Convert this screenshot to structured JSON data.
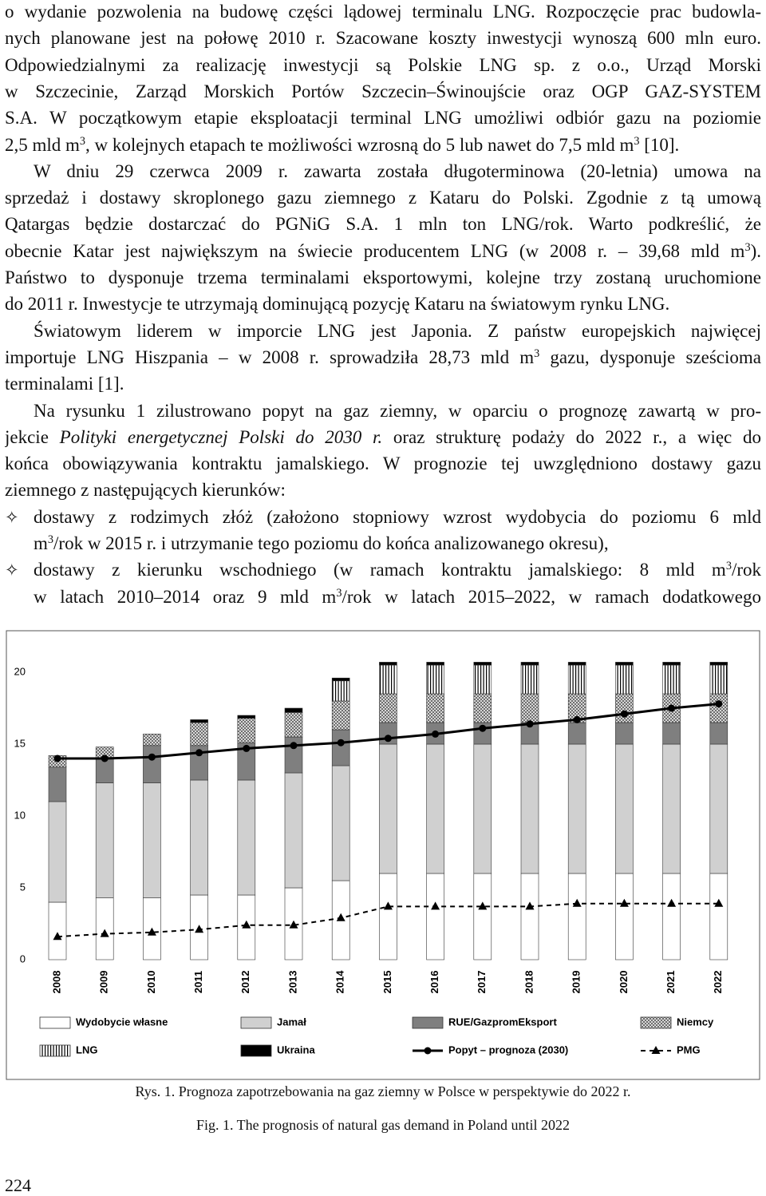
{
  "body": [
    {
      "kind": "paragraph",
      "indent": false,
      "lines": [
        [
          "o wydanie pozwolenia na budowę części lądowej terminalu LNG. Rozpoczęcie prac budowla-"
        ],
        [
          "nych planowane jest na połowę 2010 r. Szacowane koszty inwestycji wynoszą 600 mln euro."
        ],
        [
          "Odpowiedzialnymi za realizację inwestycji są Polskie LNG sp. z o.o., Urząd Morski"
        ],
        [
          "w Szczecinie, Zarząd Morskich Portów Szczecin–Świnoujście oraz OGP GAZ-SYSTEM"
        ],
        [
          "S.A. W początkowym etapie eksploatacji terminal LNG umożliwi odbiór gazu na poziomie"
        ],
        [
          "2,5 mld m",
          {
            "sup": "3"
          },
          ", w kolejnych etapach te możliwości wzrosną do 5 lub nawet do 7,5 mld m",
          {
            "sup": "3"
          },
          " [10]."
        ]
      ]
    },
    {
      "kind": "paragraph",
      "indent": true,
      "lines": [
        [
          "W dniu 29 czerwca 2009 r. zawarta została długoterminowa (20-letnia) umowa na"
        ],
        [
          "sprzedaż i dostawy skroplonego gazu ziemnego z Kataru do Polski. Zgodnie z tą umową"
        ],
        [
          "Qatargas będzie dostarczać do PGNiG S.A. 1 mln ton LNG/rok. Warto podkreślić, że"
        ],
        [
          "obecnie Katar jest największym na świecie producentem LNG (w 2008 r. – 39,68 mld m",
          {
            "sup": "3"
          },
          ")."
        ],
        [
          "Państwo to dysponuje trzema terminalami eksportowymi, kolejne trzy zostaną uruchomione"
        ],
        [
          "do 2011 r. Inwestycje te utrzymają dominującą pozycję Kataru na światowym rynku LNG."
        ]
      ]
    },
    {
      "kind": "paragraph",
      "indent": true,
      "lines": [
        [
          "Światowym liderem w imporcie LNG jest Japonia. Z państw europejskich najwięcej"
        ],
        [
          "importuje LNG Hiszpania – w 2008 r. sprowadziła 28,73 mld m",
          {
            "sup": "3"
          },
          " gazu, dysponuje sześcioma"
        ],
        [
          "terminalami [1]."
        ]
      ]
    },
    {
      "kind": "paragraph",
      "indent": true,
      "lines": [
        [
          "Na rysunku 1 zilustrowano popyt na gaz ziemny, w oparciu o prognozę zawartą w pro-"
        ],
        [
          "jekcie ",
          {
            "i": "Polityki energetycznej Polski do 2030 r."
          },
          " oraz strukturę podaży do 2022 r., a więc do"
        ],
        [
          "końca obowiązywania kontraktu jamalskiego. W prognozie tej uwzględniono dostawy gazu"
        ],
        [
          "ziemnego z następujących kierunków:"
        ]
      ]
    },
    {
      "kind": "bullet",
      "indent": false,
      "lines": [
        [
          "dostawy z rodzimych złóż (założono stopniowy wzrost wydobycia do poziomu 6 mld"
        ],
        [
          "m",
          {
            "sup": "3"
          },
          "/rok w 2015 r. i utrzymanie tego poziomu do końca analizowanego okresu),"
        ]
      ]
    },
    {
      "kind": "bullet",
      "indent": false,
      "lines": [
        [
          "dostawy z kierunku wschodniego (w ramach kontraktu jamalskiego: 8 mld m",
          {
            "sup": "3"
          },
          "/rok"
        ],
        [
          "w latach 2010–2014 oraz 9 mld m",
          {
            "sup": "3"
          },
          "/rok w latach 2015–2022, w ramach dodatkowego"
        ]
      ]
    }
  ],
  "chart_data": {
    "type": "bar",
    "stacked": true,
    "categories": [
      "2008",
      "2009",
      "2010",
      "2011",
      "2012",
      "2013",
      "2014",
      "2015",
      "2016",
      "2017",
      "2018",
      "2019",
      "2020",
      "2021",
      "2022"
    ],
    "ylim": [
      0,
      21
    ],
    "yticks": [
      0,
      5,
      10,
      15,
      20
    ],
    "grid": false,
    "series": [
      {
        "name": "Wydobycie własne",
        "color": "#ffffff",
        "values": [
          4.0,
          4.3,
          4.3,
          4.5,
          4.5,
          5.0,
          5.5,
          6.0,
          6.0,
          6.0,
          6.0,
          6.0,
          6.0,
          6.0,
          6.0
        ]
      },
      {
        "name": "Jamał",
        "color": "#d0d0d0",
        "values": [
          7.0,
          8.0,
          8.0,
          8.0,
          8.0,
          8.0,
          8.0,
          9.0,
          9.0,
          9.0,
          9.0,
          9.0,
          9.0,
          9.0,
          9.0
        ]
      },
      {
        "name": "RUE/GazpromEksport",
        "color": "#7f7f7f",
        "values": [
          2.4,
          1.7,
          2.6,
          2.4,
          2.6,
          2.5,
          2.5,
          1.5,
          1.5,
          1.5,
          1.5,
          1.5,
          1.5,
          1.5,
          1.5
        ]
      },
      {
        "name": "Niemcy",
        "color": "#8a8a8a",
        "pattern": "crosshatch",
        "values": [
          0.8,
          0.8,
          0.8,
          1.6,
          1.7,
          1.7,
          2.0,
          2.0,
          2.0,
          2.0,
          2.0,
          2.0,
          2.0,
          2.0,
          2.0
        ]
      },
      {
        "name": "LNG",
        "color": "#000000",
        "pattern": "vertical-stripes",
        "values": [
          0,
          0,
          0,
          0,
          0,
          0,
          1.4,
          2.0,
          2.0,
          2.0,
          2.0,
          2.0,
          2.0,
          2.0,
          2.0
        ]
      },
      {
        "name": "Ukraina",
        "color": "#000000",
        "values": [
          0,
          0,
          0,
          0.2,
          0.2,
          0.3,
          0.2,
          0.2,
          0.2,
          0.2,
          0.2,
          0.2,
          0.2,
          0.2,
          0.2
        ]
      },
      {
        "name": "Popyt – prognoza (2030)",
        "type": "line",
        "color": "#000000",
        "marker": "circle",
        "dashed": false,
        "values": [
          14.0,
          14.0,
          14.1,
          14.4,
          14.7,
          14.9,
          15.1,
          15.4,
          15.7,
          16.1,
          16.4,
          16.7,
          17.1,
          17.5,
          17.8
        ]
      },
      {
        "name": "PMG",
        "type": "line",
        "color": "#000000",
        "marker": "triangle",
        "dashed": true,
        "values": [
          1.6,
          1.8,
          1.9,
          2.1,
          2.4,
          2.4,
          2.9,
          3.7,
          3.7,
          3.7,
          3.7,
          3.9,
          3.9,
          3.9,
          3.9
        ]
      }
    ]
  },
  "captions": [
    "Rys. 1. Prognoza zapotrzebowania na gaz ziemny w Polsce w perspektywie do 2022 r.",
    "Fig. 1. The prognosis of natural gas demand in Poland until 2022"
  ],
  "page_number": "224"
}
